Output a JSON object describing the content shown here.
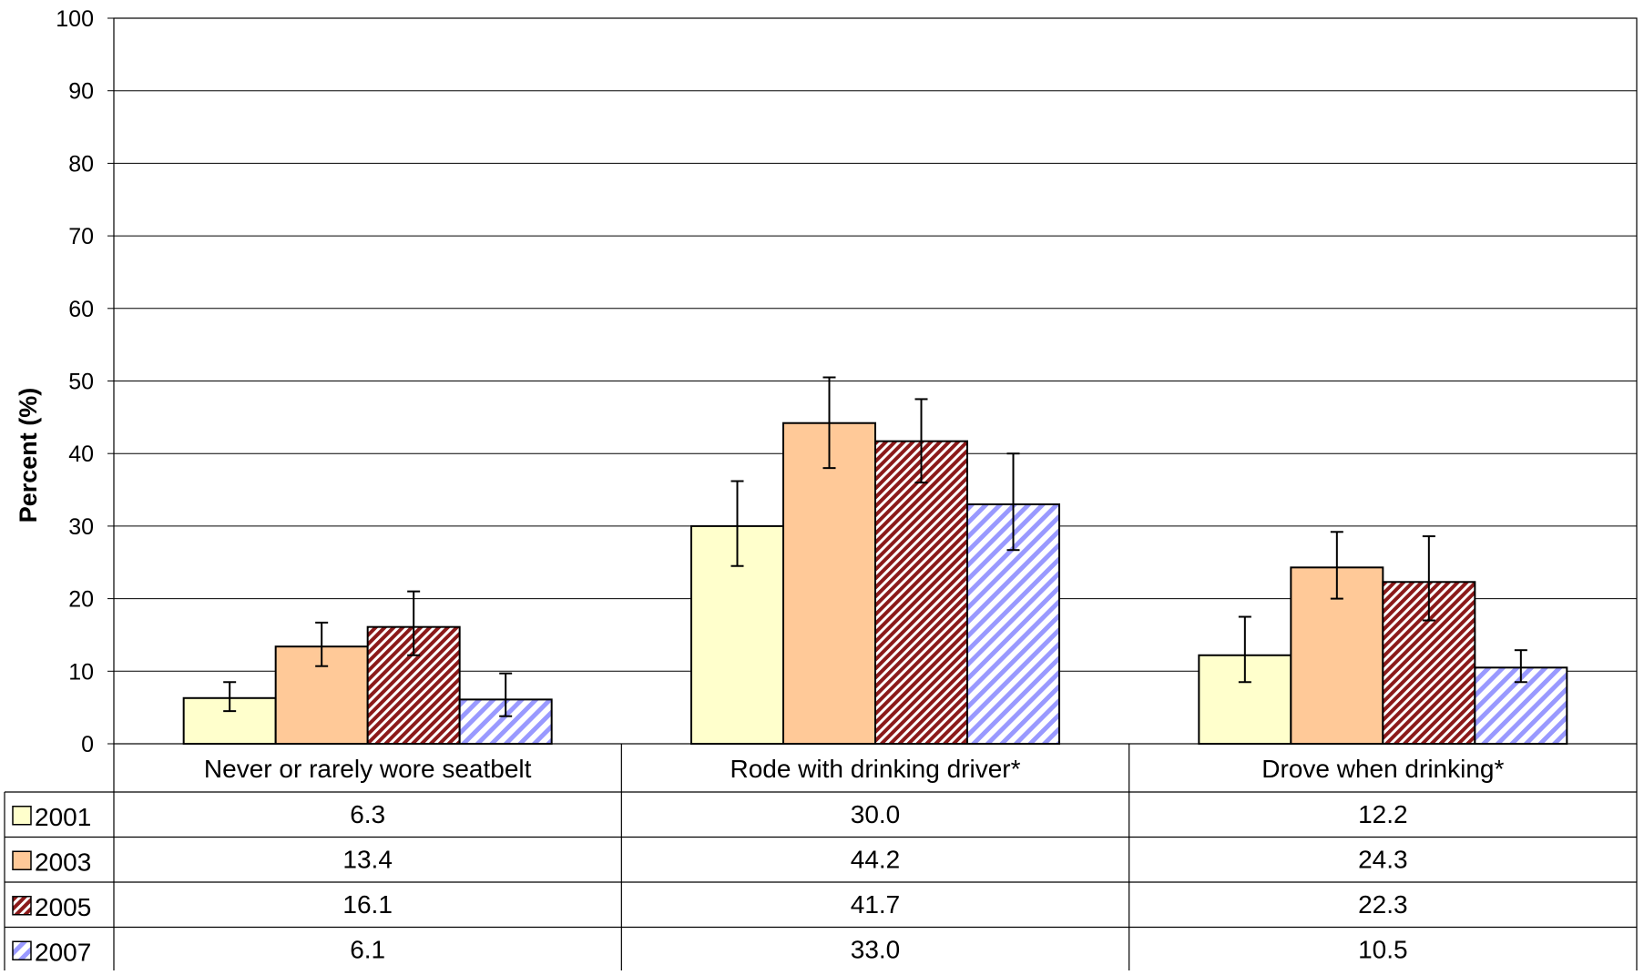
{
  "chart_data": {
    "type": "bar",
    "ylabel": "Percent (%)",
    "ylim": [
      0,
      100
    ],
    "y_ticks": [
      0,
      10,
      20,
      30,
      40,
      50,
      60,
      70,
      80,
      90,
      100
    ],
    "grid": true,
    "categories": [
      "Never or rarely wore seatbelt",
      "Rode with drinking driver*",
      "Drove when drinking*"
    ],
    "series": [
      {
        "name": "2001",
        "values": [
          6.3,
          30.0,
          12.2
        ],
        "labels": [
          "6.3",
          "30.0",
          "12.2"
        ],
        "err_low": [
          4.5,
          24.5,
          8.5
        ],
        "err_high": [
          8.5,
          36.2,
          17.5
        ],
        "fill": "#ffffcc",
        "pattern": "solid"
      },
      {
        "name": "2003",
        "values": [
          13.4,
          44.2,
          24.3
        ],
        "labels": [
          "13.4",
          "44.2",
          "24.3"
        ],
        "err_low": [
          10.7,
          38.0,
          20.0
        ],
        "err_high": [
          16.7,
          50.5,
          29.2
        ],
        "fill": "#ffc998",
        "pattern": "solid"
      },
      {
        "name": "2005",
        "values": [
          16.1,
          41.7,
          22.3
        ],
        "labels": [
          "16.1",
          "41.7",
          "22.3"
        ],
        "err_low": [
          12.2,
          36.0,
          17.0
        ],
        "err_high": [
          21.0,
          47.5,
          28.6
        ],
        "fill": "#8b1a1a",
        "pattern": "dense-diagonal"
      },
      {
        "name": "2007",
        "values": [
          6.1,
          33.0,
          10.5
        ],
        "labels": [
          "6.1",
          "33.0",
          "10.5"
        ],
        "err_low": [
          3.8,
          26.7,
          8.5
        ],
        "err_high": [
          9.7,
          40.0,
          12.9
        ],
        "fill": "#9999ff",
        "pattern": "wide-diagonal"
      }
    ],
    "data_table": true
  }
}
